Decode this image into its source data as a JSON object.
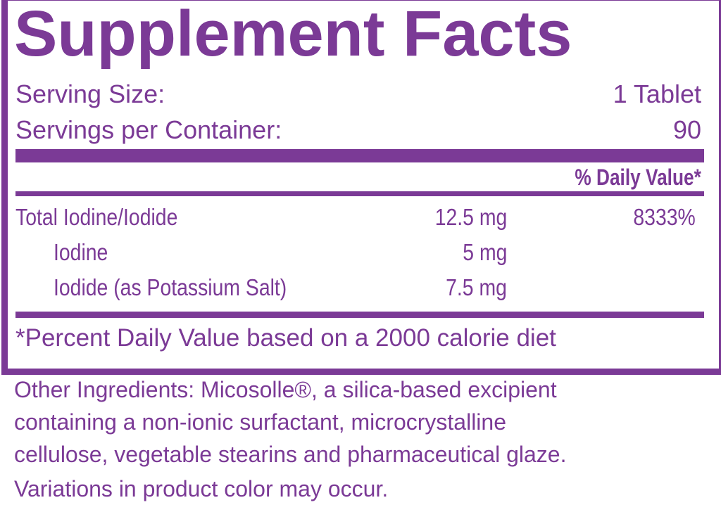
{
  "title": "Supplement Facts",
  "serving_size": {
    "label": "Serving Size:",
    "value": "1 Tablet"
  },
  "servings_per_container": {
    "label": "Servings per Container:",
    "value": "90"
  },
  "daily_value_header": "% Daily Value*",
  "nutrients": [
    {
      "name": "Total Iodine/Iodide",
      "amount": "12.5 mg",
      "dv": "8333%"
    },
    {
      "name": "Iodine",
      "amount": "5 mg",
      "dv": ""
    },
    {
      "name": "Iodide (as Potassium Salt)",
      "amount": "7.5 mg",
      "dv": ""
    }
  ],
  "footnote": "*Percent Daily Value based on a 2000 calorie diet",
  "other_ingredients": [
    "Other Ingredients: Micosolle®, a silica-based excipient",
    "containing a non-ionic surfactant, microcrystalline",
    "cellulose, vegetable stearins and pharmaceutical glaze."
  ],
  "variation_note": "Variations in product color may occur.",
  "colors": {
    "label_purple": "#7b3a96"
  }
}
